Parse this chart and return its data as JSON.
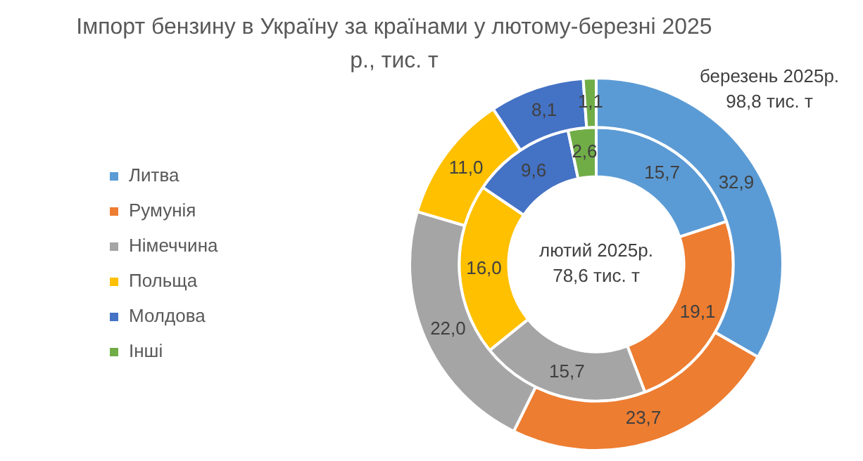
{
  "chart_data": {
    "type": "donut",
    "title": "Імпорт бензину в Україну за країнами у лютому-березні 2025 р., тис. т",
    "categories": [
      "Литва",
      "Румунія",
      "Німеччина",
      "Польща",
      "Молдова",
      "Інші"
    ],
    "colors": [
      "#5b9bd5",
      "#ed7d31",
      "#a5a5a5",
      "#ffc000",
      "#4472c4",
      "#70ad47"
    ],
    "series": [
      {
        "values": [
          32.9,
          23.7,
          22.0,
          11.0,
          8.1,
          1.1
        ],
        "value_labels": [
          "32,9",
          "23,7",
          "22,0",
          "11,0",
          "8,1",
          "1,1"
        ]
      },
      {
        "values": [
          15.7,
          19.1,
          15.7,
          16.0,
          9.6,
          2.6
        ],
        "value_labels": [
          "15,7",
          "19,1",
          "15,7",
          "16,0",
          "9,6",
          "2,6"
        ]
      }
    ],
    "annotations": [
      "березень 2025р.\n98,8 тис. т",
      "лютий 2025р.\n78,6 тис. т"
    ],
    "legend": "left"
  }
}
